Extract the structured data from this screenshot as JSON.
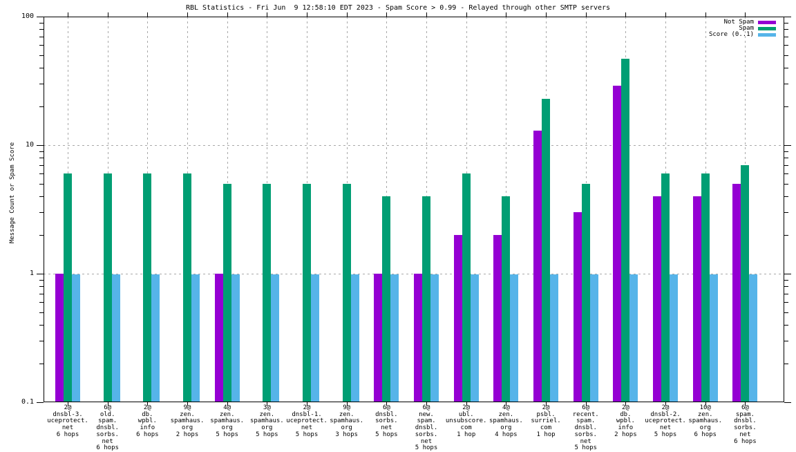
{
  "chart_data": {
    "type": "bar",
    "title": "RBL Statistics - Fri Jun  9 12:58:10 EDT 2023 - Spam Score > 0.99 - Relayed through other SMTP servers",
    "ylabel": "Message Count or Spam Score",
    "xlabel": "",
    "y_scale": "log",
    "ylim": [
      0.1,
      100
    ],
    "y_major_ticks": [
      0.1,
      1,
      10,
      100
    ],
    "y_tick_labels": [
      "0.1",
      "1",
      "10",
      "100"
    ],
    "grid": true,
    "grid_color": "#a8a8a8",
    "legend_position": "top-right",
    "series": [
      {
        "name": "Not Spam",
        "color": "#9400d3",
        "values": [
          1,
          null,
          null,
          null,
          1,
          null,
          null,
          null,
          1,
          1,
          2,
          2,
          13,
          3,
          29,
          4,
          4,
          5
        ]
      },
      {
        "name": "Spam",
        "color": "#009e73",
        "values": [
          6,
          6,
          6,
          6,
          5,
          5,
          5,
          5,
          4,
          4,
          6,
          4,
          23,
          5,
          47,
          6,
          6,
          7
        ]
      },
      {
        "name": "Score (0..1)",
        "color": "#56b4e9",
        "values": [
          0.99,
          0.99,
          0.99,
          0.99,
          0.99,
          0.99,
          0.99,
          0.99,
          0.99,
          0.99,
          0.99,
          0.99,
          0.99,
          0.99,
          0.99,
          0.99,
          0.99,
          0.99
        ]
      }
    ],
    "categories": [
      [
        "2@",
        "dnsbl-3.",
        "uceprotect.",
        "net",
        "6 hops"
      ],
      [
        "6@",
        "old.",
        "spam.",
        "dnsbl.",
        "sorbs.",
        "net",
        "6 hops"
      ],
      [
        "2@",
        "db.",
        "wpbl.",
        "info",
        "6 hops"
      ],
      [
        "9@",
        "zen.",
        "spamhaus.",
        "org",
        "2 hops"
      ],
      [
        "4@",
        "zen.",
        "spamhaus.",
        "org",
        "5 hops"
      ],
      [
        "3@",
        "zen.",
        "spamhaus.",
        "org",
        "5 hops"
      ],
      [
        "2@",
        "dnsbl-1.",
        "uceprotect.",
        "net",
        "5 hops"
      ],
      [
        "9@",
        "zen.",
        "spamhaus.",
        "org",
        "3 hops"
      ],
      [
        "6@",
        "dnsbl.",
        "sorbs.",
        "net",
        "5 hops"
      ],
      [
        "6@",
        "new.",
        "spam.",
        "dnsbl.",
        "sorbs.",
        "net",
        "5 hops"
      ],
      [
        "2@",
        "ubl.",
        "unsubscore.",
        "com",
        "1 hop"
      ],
      [
        "4@",
        "zen.",
        "spamhaus.",
        "org",
        "4 hops"
      ],
      [
        "2@",
        "psbl.",
        "surriel.",
        "com",
        "1 hop"
      ],
      [
        "6@",
        "recent.",
        "spam.",
        "dnsbl.",
        "sorbs.",
        "net",
        "5 hops"
      ],
      [
        "2@",
        "db.",
        "wpbl.",
        "info",
        "2 hops"
      ],
      [
        "2@",
        "dnsbl-2.",
        "uceprotect.",
        "net",
        "5 hops"
      ],
      [
        "10@",
        "zen.",
        "spamhaus.",
        "org",
        "6 hops"
      ],
      [
        "6@",
        "spam.",
        "dnsbl.",
        "sorbs.",
        "net",
        "6 hops"
      ]
    ]
  }
}
